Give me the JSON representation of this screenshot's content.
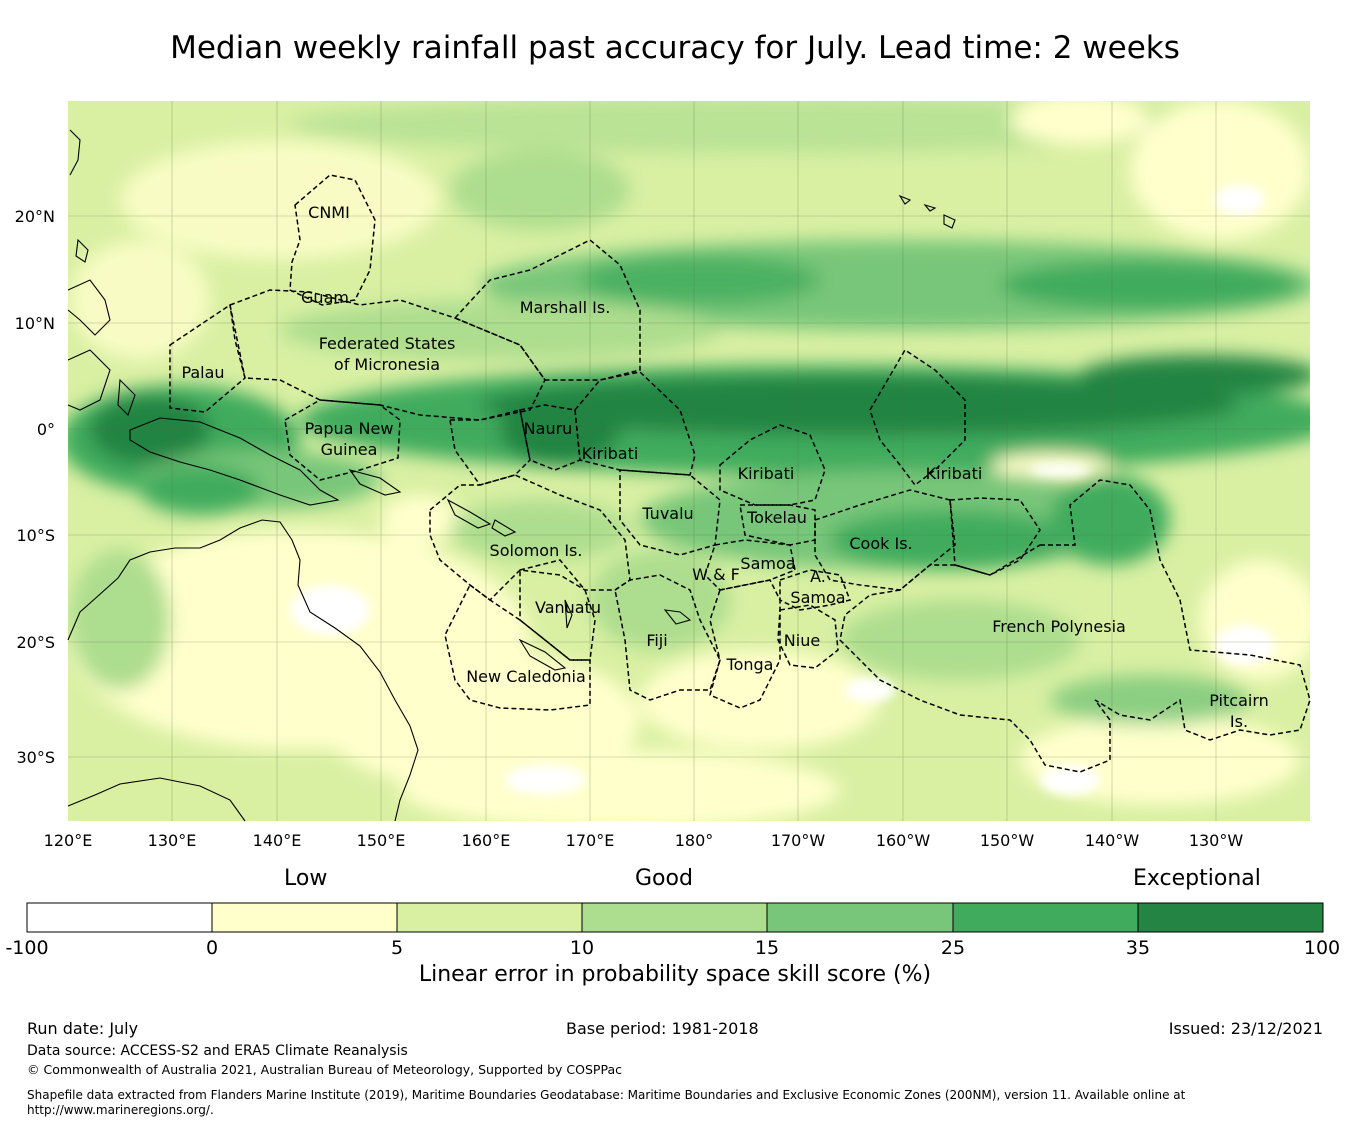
{
  "title": "Median weekly rainfall past accuracy for July. Lead time: 2 weeks",
  "map": {
    "lat_labels": [
      "20°N",
      "10°N",
      "0°",
      "10°S",
      "20°S",
      "30°S"
    ],
    "lon_labels": [
      "120°E",
      "130°E",
      "140°E",
      "150°E",
      "160°E",
      "170°E",
      "180°",
      "170°W",
      "160°W",
      "150°W",
      "140°W",
      "130°W"
    ],
    "regions": [
      [
        "CNMI"
      ],
      [
        "Guam"
      ],
      [
        "Marshall Is."
      ],
      [
        "Federated States",
        "of Micronesia"
      ],
      [
        "Palau"
      ],
      [
        "Papua New",
        "Guinea"
      ],
      [
        "Nauru"
      ],
      [
        "Kiribati"
      ],
      [
        "Kiribati"
      ],
      [
        "Kiribati"
      ],
      [
        "Tuvalu"
      ],
      [
        "Tokelau"
      ],
      [
        "Solomon Is."
      ],
      [
        "Samoa"
      ],
      [
        "W & F"
      ],
      [
        "A.",
        "Samoa"
      ],
      [
        "Cook Is."
      ],
      [
        "Vanuatu"
      ],
      [
        "Fiji"
      ],
      [
        "Niue"
      ],
      [
        "Tonga"
      ],
      [
        "French Polynesia"
      ],
      [
        "New Caledonia"
      ],
      [
        "Pitcairn",
        "Is."
      ]
    ]
  },
  "legend": {
    "categories": [
      "Low",
      "Good",
      "Exceptional"
    ],
    "ticks": [
      "-100",
      "0",
      "5",
      "10",
      "15",
      "25",
      "35",
      "100"
    ],
    "colors": [
      "#ffffff",
      "#ffffcc",
      "#d9f0a3",
      "#addd8e",
      "#78c679",
      "#41ab5d",
      "#238443"
    ],
    "title": "Linear error in probability space skill score (%)"
  },
  "footer": {
    "run_date": "Run date: July",
    "base_period": "Base period: 1981-2018",
    "issued": "Issued: 23/12/2021",
    "data_source": "Data source: ACCESS-S2 and ERA5 Climate Reanalysis",
    "copyright": "© Commonwealth of Australia 2021, Australian Bureau of Meteorology, Supported by COSPPac",
    "shapefile": "Shapefile data extracted from Flanders Marine Institute (2019), Maritime Boundaries Geodatabase: Maritime Boundaries and Exclusive Economic Zones (200NM), version 11. Available online at http://www.marineregions.org/."
  }
}
